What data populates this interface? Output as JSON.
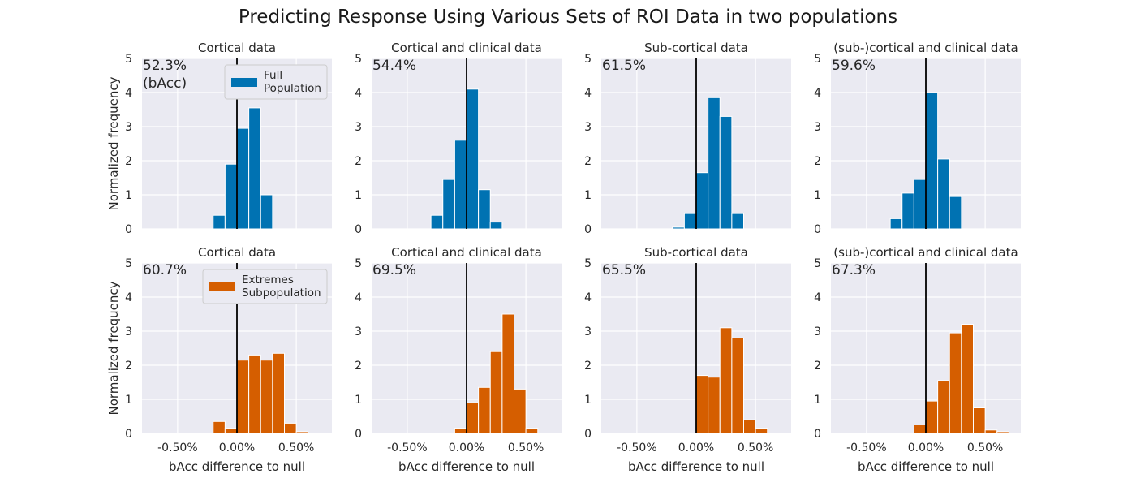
{
  "figure": {
    "title": "Predicting Response Using Various Sets of ROI Data in two populations",
    "colors": {
      "background": "#eaeaf2",
      "grid": "#ffffff",
      "null_line": "#000000",
      "full": "#0072b2",
      "extremes": "#d55e00"
    }
  },
  "chart_data": [
    {
      "type": "bar",
      "title": "Cortical data",
      "annotation": [
        "52.3%",
        "(bAcc)"
      ],
      "ylabel": "Normalized frequency",
      "xlabel": "",
      "xlim": [
        -0.8,
        0.8
      ],
      "ylim": [
        0,
        5
      ],
      "yticks": [
        0,
        1,
        2,
        3,
        4,
        5
      ],
      "xticks": [
        -0.5,
        0.0,
        0.5
      ],
      "bin_width": 0.1,
      "null_line_x": 0.0,
      "series_color": "#0072b2",
      "legend": [
        "Full",
        "Population"
      ],
      "bins": [
        [
          -0.2,
          0.4
        ],
        [
          -0.1,
          1.9
        ],
        [
          0.0,
          2.95
        ],
        [
          0.1,
          3.55
        ],
        [
          0.2,
          1.0
        ]
      ]
    },
    {
      "type": "bar",
      "title": "Cortical and clinical data",
      "annotation": [
        "54.4%"
      ],
      "ylabel": "",
      "xlabel": "",
      "xlim": [
        -0.8,
        0.8
      ],
      "ylim": [
        0,
        5
      ],
      "yticks": [
        0,
        1,
        2,
        3,
        4,
        5
      ],
      "xticks": [
        -0.5,
        0.0,
        0.5
      ],
      "bin_width": 0.1,
      "null_line_x": 0.0,
      "series_color": "#0072b2",
      "bins": [
        [
          -0.3,
          0.4
        ],
        [
          -0.2,
          1.45
        ],
        [
          -0.1,
          2.6
        ],
        [
          0.0,
          4.1
        ],
        [
          0.1,
          1.15
        ],
        [
          0.2,
          0.2
        ]
      ]
    },
    {
      "type": "bar",
      "title": "Sub-cortical data",
      "annotation": [
        "61.5%"
      ],
      "ylabel": "",
      "xlabel": "",
      "xlim": [
        -0.8,
        0.8
      ],
      "ylim": [
        0,
        5
      ],
      "yticks": [
        0,
        1,
        2,
        3,
        4,
        5
      ],
      "xticks": [
        -0.5,
        0.0,
        0.5
      ],
      "bin_width": 0.1,
      "null_line_x": 0.0,
      "series_color": "#0072b2",
      "bins": [
        [
          -0.2,
          0.05
        ],
        [
          -0.1,
          0.45
        ],
        [
          0.0,
          1.65
        ],
        [
          0.1,
          3.85
        ],
        [
          0.2,
          3.3
        ],
        [
          0.3,
          0.45
        ]
      ]
    },
    {
      "type": "bar",
      "title": "(sub-)cortical and clinical data",
      "annotation": [
        "59.6%"
      ],
      "ylabel": "",
      "xlabel": "",
      "xlim": [
        -0.8,
        0.8
      ],
      "ylim": [
        0,
        5
      ],
      "yticks": [
        0,
        1,
        2,
        3,
        4,
        5
      ],
      "xticks": [
        -0.5,
        0.0,
        0.5
      ],
      "bin_width": 0.1,
      "null_line_x": 0.0,
      "series_color": "#0072b2",
      "bins": [
        [
          -0.3,
          0.3
        ],
        [
          -0.2,
          1.05
        ],
        [
          -0.1,
          1.45
        ],
        [
          0.0,
          4.0
        ],
        [
          0.1,
          2.05
        ],
        [
          0.2,
          0.95
        ]
      ]
    },
    {
      "type": "bar",
      "title": "Cortical data",
      "annotation": [
        "60.7%"
      ],
      "ylabel": "Normalized frequency",
      "xlabel": "bAcc difference to null",
      "xlim": [
        -0.8,
        0.8
      ],
      "ylim": [
        0,
        5
      ],
      "yticks": [
        0,
        1,
        2,
        3,
        4,
        5
      ],
      "xticks": [
        -0.5,
        0.0,
        0.5
      ],
      "xtick_labels": [
        "-0.50%",
        "0.00%",
        "0.50%"
      ],
      "bin_width": 0.1,
      "null_line_x": 0.0,
      "series_color": "#d55e00",
      "legend": [
        "Extremes",
        "Subpopulation"
      ],
      "bins": [
        [
          -0.2,
          0.35
        ],
        [
          -0.1,
          0.15
        ],
        [
          0.0,
          2.15
        ],
        [
          0.1,
          2.3
        ],
        [
          0.2,
          2.15
        ],
        [
          0.3,
          2.35
        ],
        [
          0.4,
          0.3
        ],
        [
          0.5,
          0.05
        ]
      ]
    },
    {
      "type": "bar",
      "title": "Cortical and clinical data",
      "annotation": [
        "69.5%"
      ],
      "ylabel": "",
      "xlabel": "bAcc difference to null",
      "xlim": [
        -0.8,
        0.8
      ],
      "ylim": [
        0,
        5
      ],
      "yticks": [
        0,
        1,
        2,
        3,
        4,
        5
      ],
      "xticks": [
        -0.5,
        0.0,
        0.5
      ],
      "xtick_labels": [
        "-0.50%",
        "0.00%",
        "0.50%"
      ],
      "bin_width": 0.1,
      "null_line_x": 0.0,
      "series_color": "#d55e00",
      "bins": [
        [
          -0.1,
          0.15
        ],
        [
          0.0,
          0.9
        ],
        [
          0.1,
          1.35
        ],
        [
          0.2,
          2.4
        ],
        [
          0.3,
          3.5
        ],
        [
          0.4,
          1.3
        ],
        [
          0.5,
          0.15
        ]
      ]
    },
    {
      "type": "bar",
      "title": "Sub-cortical data",
      "annotation": [
        "65.5%"
      ],
      "ylabel": "",
      "xlabel": "bAcc difference to null",
      "xlim": [
        -0.8,
        0.8
      ],
      "ylim": [
        0,
        5
      ],
      "yticks": [
        0,
        1,
        2,
        3,
        4,
        5
      ],
      "xticks": [
        -0.5,
        0.0,
        0.5
      ],
      "xtick_labels": [
        "-0.50%",
        "0.00%",
        "0.50%"
      ],
      "bin_width": 0.1,
      "null_line_x": 0.0,
      "series_color": "#d55e00",
      "bins": [
        [
          0.0,
          1.7
        ],
        [
          0.1,
          1.65
        ],
        [
          0.2,
          3.1
        ],
        [
          0.3,
          2.8
        ],
        [
          0.4,
          0.4
        ],
        [
          0.5,
          0.15
        ]
      ]
    },
    {
      "type": "bar",
      "title": "(sub-)cortical and clinical data",
      "annotation": [
        "67.3%"
      ],
      "ylabel": "",
      "xlabel": "bAcc difference to null",
      "xlim": [
        -0.8,
        0.8
      ],
      "ylim": [
        0,
        5
      ],
      "yticks": [
        0,
        1,
        2,
        3,
        4,
        5
      ],
      "xticks": [
        -0.5,
        0.0,
        0.5
      ],
      "xtick_labels": [
        "-0.50%",
        "0.00%",
        "0.50%"
      ],
      "bin_width": 0.1,
      "null_line_x": 0.0,
      "series_color": "#d55e00",
      "bins": [
        [
          -0.1,
          0.25
        ],
        [
          0.0,
          0.95
        ],
        [
          0.1,
          1.55
        ],
        [
          0.2,
          2.95
        ],
        [
          0.3,
          3.2
        ],
        [
          0.4,
          0.75
        ],
        [
          0.5,
          0.1
        ],
        [
          0.6,
          0.05
        ]
      ]
    }
  ]
}
